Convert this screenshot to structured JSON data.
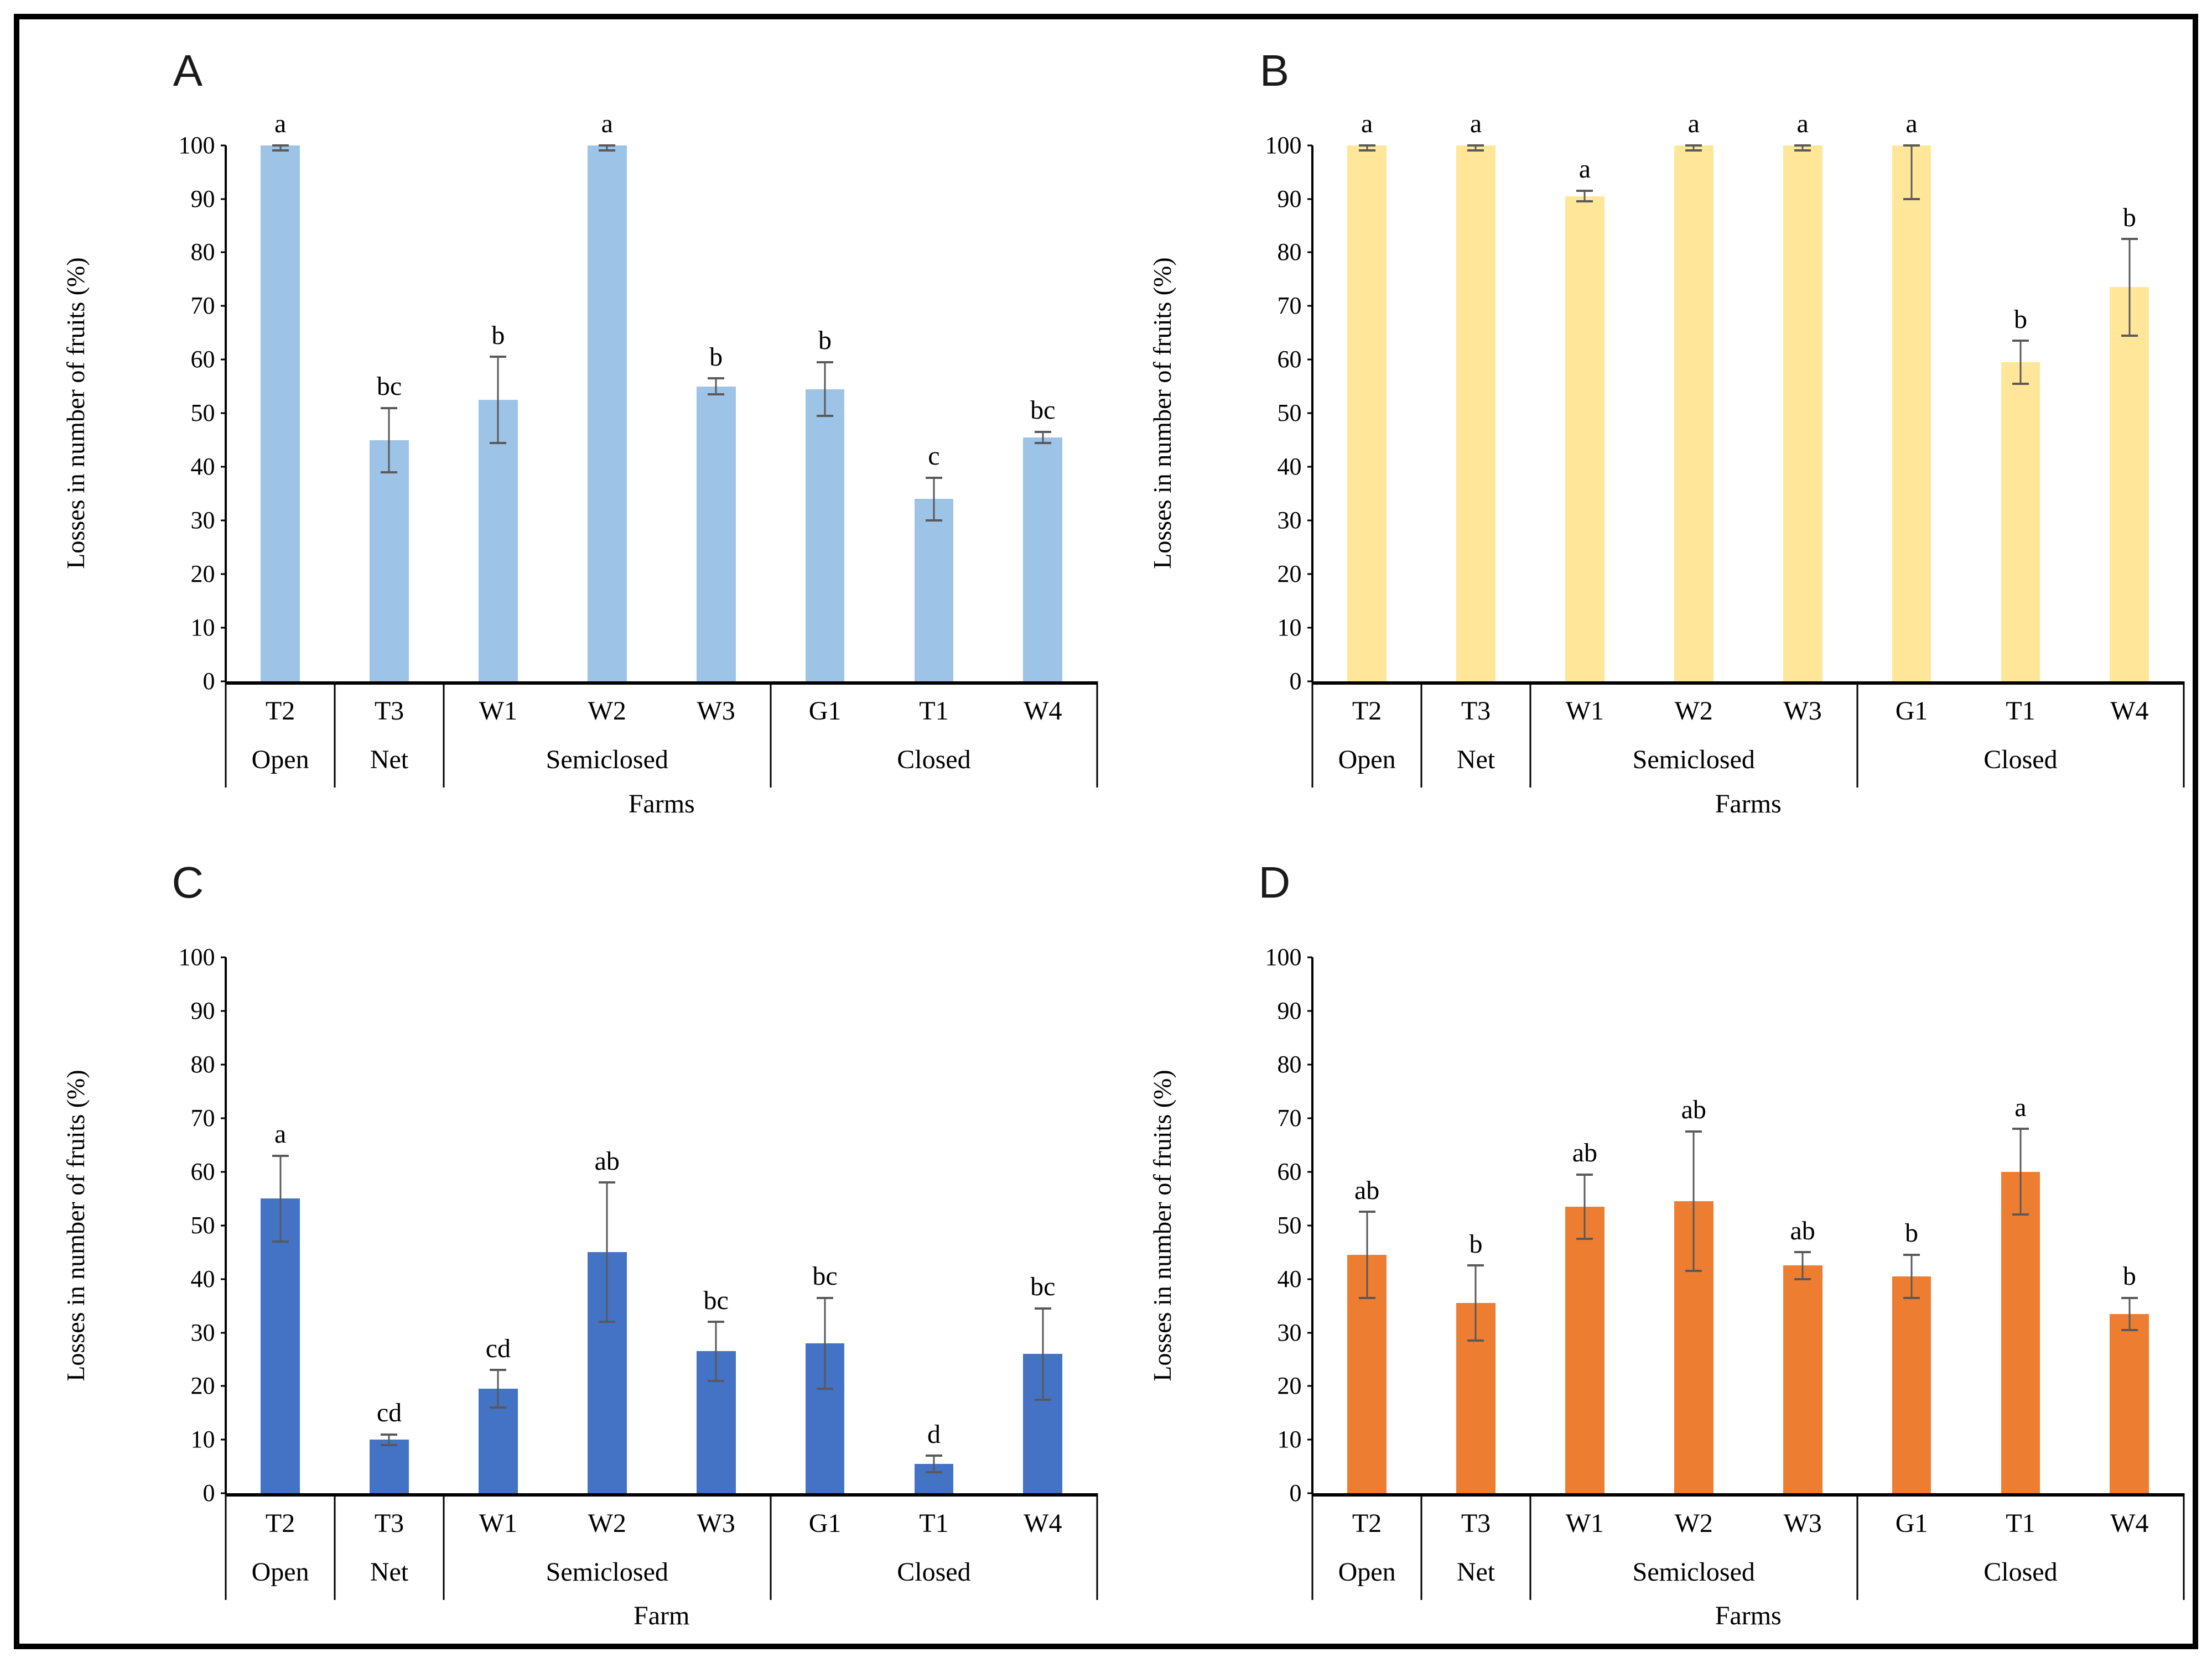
{
  "figure": {
    "background": "#ffffff",
    "border_color": "#000000"
  },
  "chart_data": [
    {
      "type": "bar",
      "panel_label": "A",
      "ylabel": "Losses in number of fruits (%)",
      "xlabel": "Farms",
      "ylim": [
        0,
        100
      ],
      "yticks": [
        0,
        10,
        20,
        30,
        40,
        50,
        60,
        70,
        80,
        90,
        100
      ],
      "grid": false,
      "legend": "none",
      "bar_color": "#9DC3E6",
      "error_color": "#595959",
      "categories": [
        "T2",
        "T3",
        "W1",
        "W2",
        "W3",
        "G1",
        "T1",
        "W4"
      ],
      "groups": [
        {
          "label": "Open",
          "span": 1
        },
        {
          "label": "Net",
          "span": 1
        },
        {
          "label": "Semiclosed",
          "span": 3
        },
        {
          "label": "Closed",
          "span": 3
        }
      ],
      "values": [
        100,
        45,
        52.5,
        100,
        55,
        54.5,
        34,
        45.5
      ],
      "errors": [
        1,
        6,
        8,
        1,
        1.5,
        5,
        4,
        1
      ],
      "sig_letters": [
        "a",
        "bc",
        "b",
        "a",
        "b",
        "b",
        "c",
        "bc"
      ]
    },
    {
      "type": "bar",
      "panel_label": "B",
      "ylabel": "Losses in number of fruits (%)",
      "xlabel": "Farms",
      "ylim": [
        0,
        100
      ],
      "yticks": [
        0,
        10,
        20,
        30,
        40,
        50,
        60,
        70,
        80,
        90,
        100
      ],
      "grid": false,
      "legend": "none",
      "bar_color": "#FFE699",
      "error_color": "#595959",
      "categories": [
        "T2",
        "T3",
        "W1",
        "W2",
        "W3",
        "G1",
        "T1",
        "W4"
      ],
      "groups": [
        {
          "label": "Open",
          "span": 1
        },
        {
          "label": "Net",
          "span": 1
        },
        {
          "label": "Semiclosed",
          "span": 3
        },
        {
          "label": "Closed",
          "span": 3
        }
      ],
      "values": [
        100,
        100,
        90.5,
        100,
        100,
        100,
        59.5,
        73.5
      ],
      "errors": [
        1,
        1,
        1,
        1,
        1,
        10,
        4,
        9
      ],
      "sig_letters": [
        "a",
        "a",
        "a",
        "a",
        "a",
        "a",
        "b",
        "b"
      ]
    },
    {
      "type": "bar",
      "panel_label": "C",
      "ylabel": "Losses in number of fruits (%)",
      "xlabel": "Farm",
      "ylim": [
        0,
        100
      ],
      "yticks": [
        0,
        10,
        20,
        30,
        40,
        50,
        60,
        70,
        80,
        90,
        100
      ],
      "grid": false,
      "legend": "none",
      "bar_color": "#4472C4",
      "error_color": "#595959",
      "categories": [
        "T2",
        "T3",
        "W1",
        "W2",
        "W3",
        "G1",
        "T1",
        "W4"
      ],
      "groups": [
        {
          "label": "Open",
          "span": 1
        },
        {
          "label": "Net",
          "span": 1
        },
        {
          "label": "Semiclosed",
          "span": 3
        },
        {
          "label": "Closed",
          "span": 3
        }
      ],
      "values": [
        55,
        10,
        19.5,
        45,
        26.5,
        28,
        5.5,
        26
      ],
      "errors": [
        8,
        1,
        3.5,
        13,
        5.5,
        8.5,
        1.5,
        8.5
      ],
      "sig_letters": [
        "a",
        "cd",
        "cd",
        "ab",
        "bc",
        "bc",
        "d",
        "bc"
      ]
    },
    {
      "type": "bar",
      "panel_label": "D",
      "ylabel": "Losses in number of fruits (%)",
      "xlabel": "Farms",
      "ylim": [
        0,
        100
      ],
      "yticks": [
        0,
        10,
        20,
        30,
        40,
        50,
        60,
        70,
        80,
        90,
        100
      ],
      "grid": false,
      "legend": "none",
      "bar_color": "#ED7D31",
      "error_color": "#595959",
      "categories": [
        "T2",
        "T3",
        "W1",
        "W2",
        "W3",
        "G1",
        "T1",
        "W4"
      ],
      "groups": [
        {
          "label": "Open",
          "span": 1
        },
        {
          "label": "Net",
          "span": 1
        },
        {
          "label": "Semiclosed",
          "span": 3
        },
        {
          "label": "Closed",
          "span": 3
        }
      ],
      "values": [
        44.5,
        35.5,
        53.5,
        54.5,
        42.5,
        40.5,
        60,
        33.5
      ],
      "errors": [
        8,
        7,
        6,
        13,
        2.5,
        4,
        8,
        3
      ],
      "sig_letters": [
        "ab",
        "b",
        "ab",
        "ab",
        "ab",
        "b",
        "a",
        "b"
      ]
    }
  ]
}
